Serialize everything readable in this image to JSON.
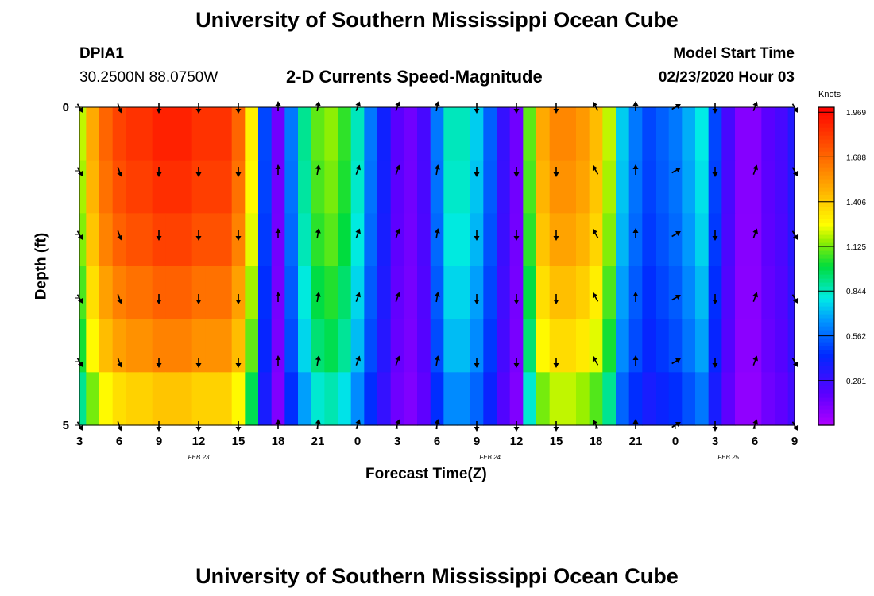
{
  "header": {
    "title": "University of Southern Mississippi Ocean Cube",
    "station": "DPIA1",
    "coords": "30.2500N 88.0750W",
    "subtitle": "2-D Currents Speed-Magnitude",
    "model_start_label": "Model Start Time",
    "model_start_value": "02/23/2020 Hour 03"
  },
  "footer": {
    "title": "University of Southern Mississippi Ocean Cube"
  },
  "chart_data": {
    "type": "heatmap",
    "title": "2-D Currents Speed-Magnitude",
    "xlabel": "Forecast Time(Z)",
    "ylabel": "Depth (ft)",
    "x_tick_labels": [
      "3",
      "6",
      "9",
      "12",
      "15",
      "18",
      "21",
      "0",
      "3",
      "6",
      "9",
      "12",
      "15",
      "18",
      "21",
      "0",
      "3",
      "6",
      "9"
    ],
    "x_range_hours": [
      0,
      54
    ],
    "date_labels": [
      {
        "text": "FEB 23",
        "hour": 9
      },
      {
        "text": "FEB 24",
        "hour": 31
      },
      {
        "text": "FEB 25",
        "hour": 49
      }
    ],
    "y_tick_labels": [
      "0",
      "5"
    ],
    "ylim": [
      0,
      5
    ],
    "colorbar": {
      "units": "Knots",
      "ticks": [
        "1.969",
        "1.688",
        "1.406",
        "1.125",
        "0.844",
        "0.562",
        "0.281"
      ],
      "range": [
        0,
        2.0
      ]
    },
    "hours": [
      0,
      1,
      2,
      3,
      4,
      5,
      6,
      7,
      8,
      9,
      10,
      11,
      12,
      13,
      14,
      15,
      16,
      17,
      18,
      19,
      20,
      21,
      22,
      23,
      24,
      25,
      26,
      27,
      28,
      29,
      30,
      31,
      32,
      33,
      34,
      35,
      36,
      37,
      38,
      39,
      40,
      41,
      42,
      43,
      44,
      45,
      46,
      47,
      48,
      49,
      50,
      51,
      52,
      53,
      54
    ],
    "profile": [
      1.2,
      1.5,
      1.7,
      1.8,
      1.85,
      1.85,
      1.9,
      1.9,
      1.9,
      1.85,
      1.85,
      1.85,
      1.7,
      1.3,
      0.5,
      0.15,
      0.6,
      0.9,
      1.1,
      1.15,
      1.05,
      0.85,
      0.6,
      0.4,
      0.2,
      0.15,
      0.25,
      0.6,
      0.85,
      0.85,
      0.75,
      0.55,
      0.3,
      0.15,
      1.1,
      1.5,
      1.6,
      1.6,
      1.55,
      1.45,
      1.2,
      0.75,
      0.6,
      0.5,
      0.55,
      0.6,
      0.7,
      0.8,
      0.5,
      0.25,
      0.1,
      0.1,
      0.2,
      0.25,
      0.35
    ],
    "depth_rows": [
      {
        "depth": 0.25,
        "factor": 1.0
      },
      {
        "depth": 1.0,
        "factor": 0.98
      },
      {
        "depth": 2.0,
        "factor": 0.95
      },
      {
        "depth": 3.0,
        "factor": 0.9
      },
      {
        "depth": 4.0,
        "factor": 0.85
      },
      {
        "depth": 4.75,
        "factor": 0.75
      }
    ],
    "vectors": {
      "depths": [
        0,
        1,
        2,
        3,
        4,
        5
      ],
      "hours": [
        0,
        3,
        6,
        9,
        12,
        15,
        18,
        21,
        24,
        27,
        30,
        33,
        36,
        39,
        42,
        45,
        48,
        51,
        54
      ],
      "directions_deg": [
        150,
        160,
        180,
        180,
        180,
        0,
        10,
        20,
        20,
        10,
        180,
        180,
        180,
        330,
        0,
        60,
        180,
        20,
        150
      ]
    }
  }
}
